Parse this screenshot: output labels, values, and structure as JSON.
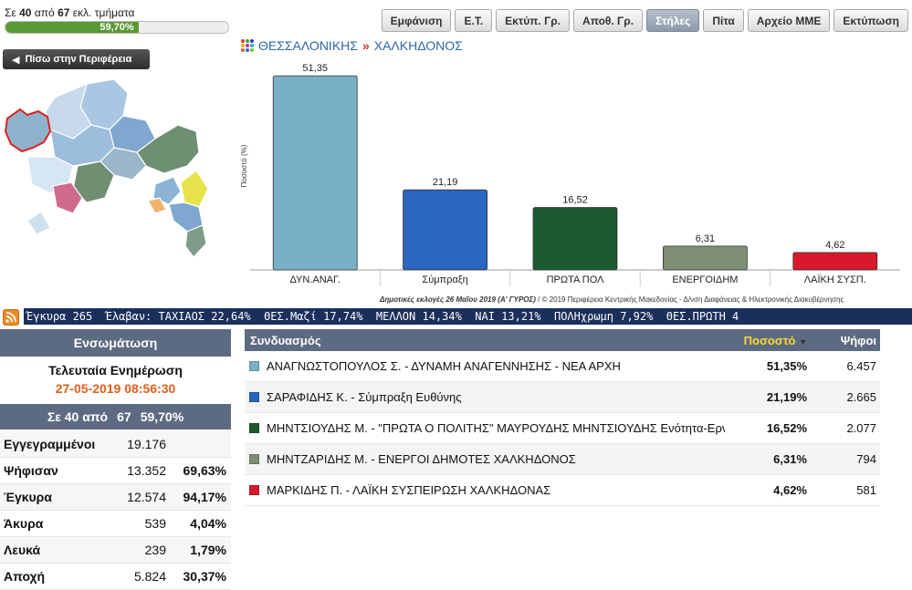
{
  "progress": {
    "prefix": "Σε",
    "done": "40",
    "of_word": "από",
    "total": "67",
    "suffix": "εκλ. τμήματα",
    "percent_label": "59,70%",
    "fraction": 0.597
  },
  "toolbar": [
    "Εμφάνιση",
    "Ε.Τ.",
    "Εκτύπ. Γρ.",
    "Αποθ. Γρ.",
    "Στήλες",
    "Πίτα",
    "Αρχείο ΜΜΕ",
    "Εκτύπωση"
  ],
  "toolbar_active": "Στήλες",
  "back_button": "Πίσω στην Περιφέρεια",
  "breadcrumb": {
    "region": "ΘΕΣΣΑΛΟΝΙΚΗΣ",
    "separator": "»",
    "municipality": "ΧΑΛΚΗΔΟΝΟΣ"
  },
  "chart_data": {
    "type": "bar",
    "categories": [
      "ΔΥΝ.ΑΝΑΓ.",
      "Σύμπραξη",
      "ΠΡΩΤΑ ΠΟΛ",
      "ΕΝΕΡΓΟΙΔΗΜ",
      "ΛΑΪΚΗ ΣΥΣΠ."
    ],
    "values": [
      51.35,
      21.19,
      16.52,
      6.31,
      4.62
    ],
    "value_labels": [
      "51,35",
      "21,19",
      "16,52",
      "6,31",
      "4,62"
    ],
    "colors": [
      "#7ab0c6",
      "#2a66bf",
      "#1b5a2f",
      "#7e8e72",
      "#d7192b"
    ],
    "ylabel": "Ποσοστό (%)",
    "ylim": [
      0,
      55
    ]
  },
  "chart_footer": {
    "bold": "Δημοτικές εκλογές 26 Μαΐου 2019 (Α' ΓΥΡΟΣ)",
    "rest": " / © 2019 Περιφέρεια Κεντρικής Μακεδονίας - Δ/νση Διαφάνειας & Ηλεκτρονικής Διακυβέρνησης"
  },
  "ticker": "Έγκυρα 265  Έλαβαν: ΤΑΧΙΑΟΣ 22,64%  ΘΕΣ.Μαζί 17,74%  ΜΕΛΛΟΝ 14,34%  ΝΑΙ 13,21%  ΠΟΛΗχρωμη 7,92%  ΘΕΣ.ΠΡΩΤΗ 4",
  "left_panel": {
    "header": "Ενσωμάτωση",
    "update_title": "Τελευταία Ενημέρωση",
    "update_time": "27-05-2019 08:56:30",
    "count": {
      "label": "Σε 40 από",
      "total": "67",
      "percent": "59,70%"
    },
    "stats": [
      {
        "label": "Εγγεγραμμένοι",
        "value": "19.176",
        "pct": ""
      },
      {
        "label": "Ψήφισαν",
        "value": "13.352",
        "pct": "69,63%"
      },
      {
        "label": "Έγκυρα",
        "value": "12.574",
        "pct": "94,17%"
      },
      {
        "label": "Άκυρα",
        "value": "539",
        "pct": "4,04%"
      },
      {
        "label": "Λευκά",
        "value": "239",
        "pct": "1,79%"
      },
      {
        "label": "Αποχή",
        "value": "5.824",
        "pct": "30,37%"
      }
    ]
  },
  "results": {
    "headers": {
      "name": "Συνδυασμός",
      "pct": "Ποσοστό",
      "votes": "Ψήφοι"
    },
    "rows": [
      {
        "color": "#7ab0c6",
        "name": "ΑΝΑΓΝΩΣΤΟΠΟΥΛΟΣ Σ. - ΔΥΝΑΜΗ ΑΝΑΓΕΝΝΗΣΗΣ - ΝΕΑ ΑΡΧΗ",
        "pct": "51,35%",
        "votes": "6.457"
      },
      {
        "color": "#2a66bf",
        "name": "ΣΑΡΑΦΙΔΗΣ Κ. - Σύμπραξη Ευθύνης",
        "pct": "21,19%",
        "votes": "2.665"
      },
      {
        "color": "#1b5a2f",
        "name": "ΜΗΝΤΣΙΟΥΔΗΣ Μ. - \"ΠΡΩΤΑ Ο ΠΟΛΙΤΗΣ\" ΜΑΥΡΟΥΔΗΣ ΜΗΝΤΣΙΟΥΔΗΣ Ενότητα-Ερν",
        "pct": "16,52%",
        "votes": "2.077"
      },
      {
        "color": "#7e8e72",
        "name": "ΜΗΝΤΖΑΡΙΔΗΣ Μ. - ΕΝΕΡΓΟΙ ΔΗΜΟΤΕΣ ΧΑΛΚΗΔΟΝΟΣ",
        "pct": "6,31%",
        "votes": "794"
      },
      {
        "color": "#d7192b",
        "name": "ΜΑΡΚΙΔΗΣ Π. - ΛΑΪΚΗ ΣΥΣΠΕΙΡΩΣΗ ΧΑΛΚΗΔΟΝΑΣ",
        "pct": "4,62%",
        "votes": "581"
      }
    ]
  }
}
